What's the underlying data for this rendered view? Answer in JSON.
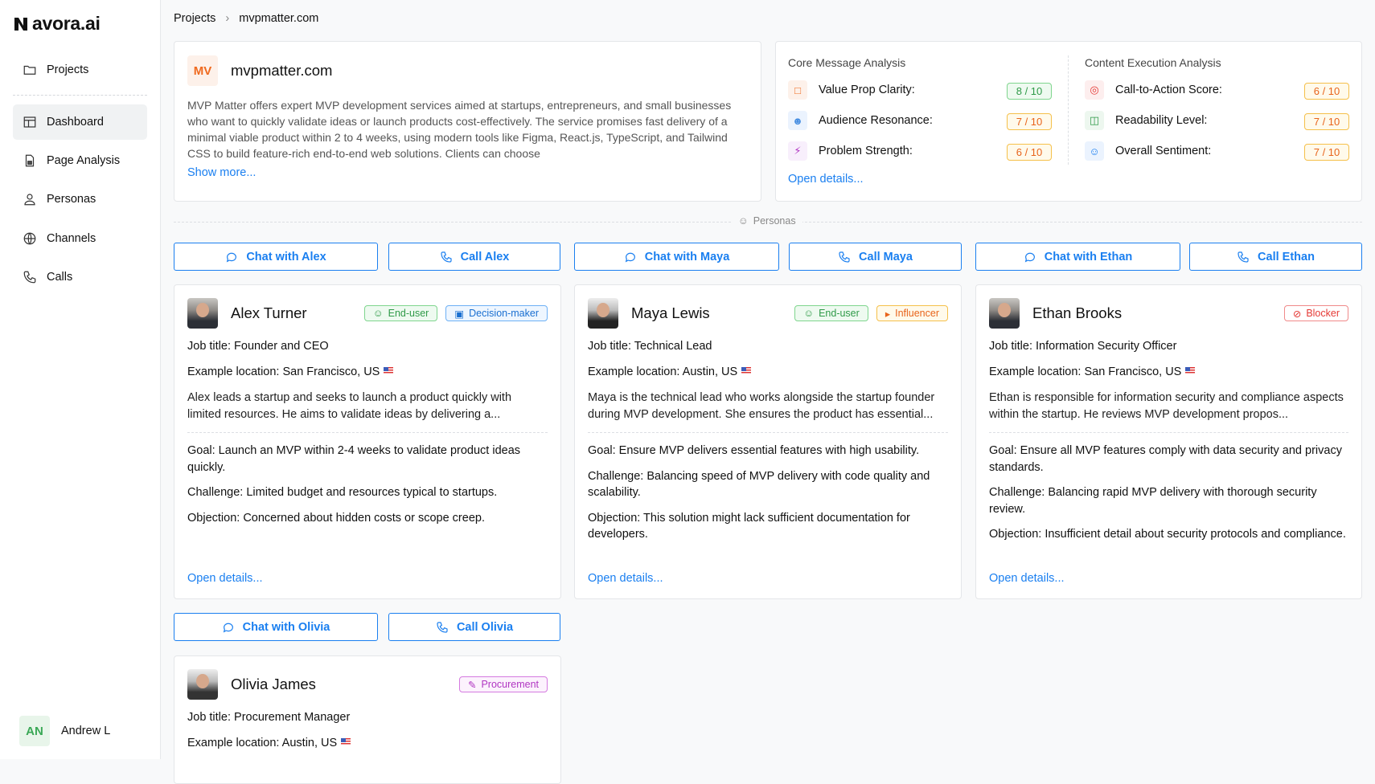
{
  "app": {
    "logo": "avora.ai"
  },
  "sidebar": {
    "items": [
      {
        "label": "Projects",
        "icon": "folder-icon"
      },
      {
        "label": "Dashboard",
        "icon": "layout-icon",
        "active": true
      },
      {
        "label": "Page Analysis",
        "icon": "file-icon"
      },
      {
        "label": "Personas",
        "icon": "user-icon"
      },
      {
        "label": "Channels",
        "icon": "globe-icon"
      },
      {
        "label": "Calls",
        "icon": "phone-icon"
      }
    ],
    "user": {
      "initials": "AN",
      "name": "Andrew L"
    }
  },
  "breadcrumb": [
    "Projects",
    "mvpmatter.com"
  ],
  "project": {
    "initials": "MV",
    "name": "mvpmatter.com",
    "description": "MVP Matter offers expert MVP development services aimed at startups, entrepreneurs, and small businesses who want to quickly validate ideas or launch products cost-effectively. The service promises fast delivery of a minimal viable product within 2 to 4 weeks, using modern tools like Figma, React.js, TypeScript, and Tailwind CSS to build feature-rich end-to-end web solutions. Clients can choose",
    "show_more": "Show more..."
  },
  "analysis": {
    "core_title": "Core Message Analysis",
    "exec_title": "Content Execution Analysis",
    "open_details": "Open details...",
    "core": [
      {
        "label": "Value Prop Clarity:",
        "score": "8 / 10",
        "status": "good"
      },
      {
        "label": "Audience Resonance:",
        "score": "7 / 10",
        "status": "medium"
      },
      {
        "label": "Problem Strength:",
        "score": "6 / 10",
        "status": "medium"
      }
    ],
    "exec": [
      {
        "label": "Call-to-Action Score:",
        "score": "6 / 10",
        "status": "medium"
      },
      {
        "label": "Readability Level:",
        "score": "7 / 10",
        "status": "medium"
      },
      {
        "label": "Overall Sentiment:",
        "score": "7 / 10",
        "status": "medium"
      }
    ]
  },
  "personas_divider": "Personas",
  "personas": [
    {
      "name": "Alex Turner",
      "chat": "Chat with Alex",
      "call": "Call Alex",
      "tags": [
        "End-user",
        "Decision-maker"
      ],
      "job": "Job title: Founder and CEO",
      "location": "Example location: San Francisco, US",
      "summary": "Alex leads a startup and seeks to launch a product quickly with limited resources. He aims to validate ideas by delivering a...",
      "goal": "Goal: Launch an MVP within 2-4 weeks to validate product ideas quickly.",
      "challenge": "Challenge: Limited budget and resources typical to startups.",
      "objection": "Objection: Concerned about hidden costs or scope creep.",
      "open": "Open details..."
    },
    {
      "name": "Maya Lewis",
      "chat": "Chat with Maya",
      "call": "Call Maya",
      "tags": [
        "End-user",
        "Influencer"
      ],
      "job": "Job title: Technical Lead",
      "location": "Example location: Austin, US",
      "summary": "Maya is the technical lead who works alongside the startup founder during MVP development. She ensures the product has essential...",
      "goal": "Goal: Ensure MVP delivers essential features with high usability.",
      "challenge": "Challenge: Balancing speed of MVP delivery with code quality and scalability.",
      "objection": "Objection: This solution might lack sufficient documentation for developers.",
      "open": "Open details..."
    },
    {
      "name": "Ethan Brooks",
      "chat": "Chat with Ethan",
      "call": "Call Ethan",
      "tags": [
        "Blocker"
      ],
      "job": "Job title: Information Security Officer",
      "location": "Example location: San Francisco, US",
      "summary": "Ethan is responsible for information security and compliance aspects within the startup. He reviews MVP development propos...",
      "goal": "Goal: Ensure all MVP features comply with data security and privacy standards.",
      "challenge": "Challenge: Balancing rapid MVP delivery with thorough security review.",
      "objection": "Objection: Insufficient detail about security protocols and compliance.",
      "open": "Open details..."
    },
    {
      "name": "Olivia James",
      "chat": "Chat with Olivia",
      "call": "Call Olivia",
      "tags": [
        "Procurement"
      ],
      "job": "Job title: Procurement Manager",
      "location": "Example location: Austin, US"
    }
  ]
}
